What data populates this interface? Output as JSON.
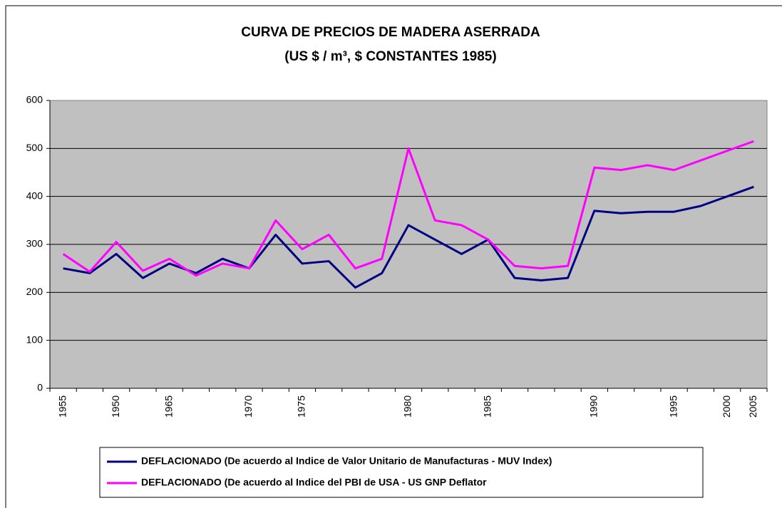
{
  "chart_data": {
    "type": "line",
    "title": "CURVA DE PRECIOS DE MADERA ASERRADA",
    "subtitle": "(US $ / m³, $ CONSTANTES 1985)",
    "categories": [
      "1955",
      null,
      "1950",
      null,
      "1965",
      null,
      null,
      "1970",
      null,
      "1975",
      null,
      null,
      null,
      "1980",
      null,
      null,
      "1985",
      null,
      null,
      null,
      "1990",
      null,
      null,
      "1995",
      null,
      "2000",
      "2005"
    ],
    "series": [
      {
        "name": "DEFLACIONADO (De acuerdo al Indice de Valor Unitario de Manufacturas - MUV Index)",
        "color": "#000080",
        "values": [
          250,
          240,
          280,
          230,
          260,
          240,
          270,
          250,
          320,
          260,
          265,
          210,
          240,
          340,
          310,
          280,
          310,
          230,
          225,
          230,
          370,
          365,
          368,
          368,
          380,
          400,
          420
        ]
      },
      {
        "name": "DEFLACIONADO (De acuerdo al Indice del PBI de USA - US GNP Deflator",
        "color": "#ff00ff",
        "values": [
          280,
          243,
          305,
          245,
          270,
          235,
          260,
          250,
          350,
          290,
          320,
          250,
          270,
          500,
          350,
          340,
          310,
          255,
          250,
          255,
          460,
          455,
          465,
          455,
          475,
          495,
          515
        ]
      }
    ],
    "ylim": [
      0,
      600
    ],
    "yticks": [
      0,
      100,
      200,
      300,
      400,
      500,
      600
    ],
    "grid": true,
    "legend": "bottom"
  }
}
